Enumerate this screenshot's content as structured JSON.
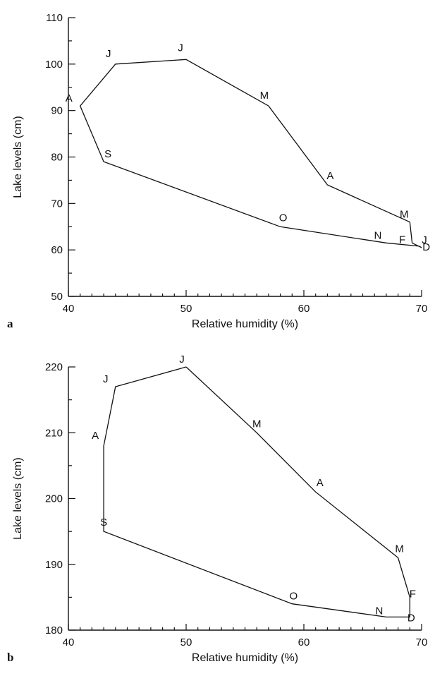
{
  "chart_data": [
    {
      "type": "line",
      "panel_label": "a",
      "xlabel": "Relative humidity (%)",
      "ylabel": "Lake levels (cm)",
      "xlim": [
        40,
        70
      ],
      "ylim": [
        50,
        110
      ],
      "xticks": [
        40,
        50,
        60,
        70
      ],
      "yticks": [
        50,
        60,
        70,
        80,
        90,
        100,
        110
      ],
      "grid": false,
      "series": [
        {
          "points": [
            {
              "label": "J",
              "x": 70,
              "y": 60.5
            },
            {
              "label": "F",
              "x": 69.2,
              "y": 61.5
            },
            {
              "label": "M",
              "x": 69,
              "y": 66
            },
            {
              "label": "A",
              "x": 62,
              "y": 74
            },
            {
              "label": "M",
              "x": 57,
              "y": 91
            },
            {
              "label": "J",
              "x": 50,
              "y": 101
            },
            {
              "label": "J",
              "x": 44,
              "y": 100
            },
            {
              "label": "A",
              "x": 41,
              "y": 91
            },
            {
              "label": "S",
              "x": 43,
              "y": 79
            },
            {
              "label": "O",
              "x": 58,
              "y": 65
            },
            {
              "label": "N",
              "x": 67,
              "y": 61.5
            },
            {
              "label": "D",
              "x": 69.8,
              "y": 60.8
            },
            {
              "label": "",
              "x": 70,
              "y": 60.5
            }
          ]
        }
      ]
    },
    {
      "type": "line",
      "panel_label": "b",
      "xlabel": "Relative humidity (%)",
      "ylabel": "Lake levels (cm)",
      "xlim": [
        40,
        70
      ],
      "ylim": [
        180,
        220
      ],
      "xticks": [
        40,
        50,
        60,
        70
      ],
      "yticks": [
        180,
        190,
        200,
        210,
        220
      ],
      "grid": false,
      "series": [
        {
          "points": [
            {
              "label": "J",
              "x": 50,
              "y": 220
            },
            {
              "label": "M",
              "x": 56,
              "y": 210
            },
            {
              "label": "A",
              "x": 61,
              "y": 201
            },
            {
              "label": "M",
              "x": 68,
              "y": 191
            },
            {
              "label": "F",
              "x": 69,
              "y": 185
            },
            {
              "label": "D",
              "x": 69,
              "y": 182
            },
            {
              "label": "N",
              "x": 67,
              "y": 182
            },
            {
              "label": "O",
              "x": 59,
              "y": 184
            },
            {
              "label": "S",
              "x": 43,
              "y": 195
            },
            {
              "label": "A",
              "x": 43,
              "y": 208
            },
            {
              "label": "J",
              "x": 44,
              "y": 217
            },
            {
              "label": "",
              "x": 50,
              "y": 220
            }
          ]
        }
      ]
    }
  ]
}
